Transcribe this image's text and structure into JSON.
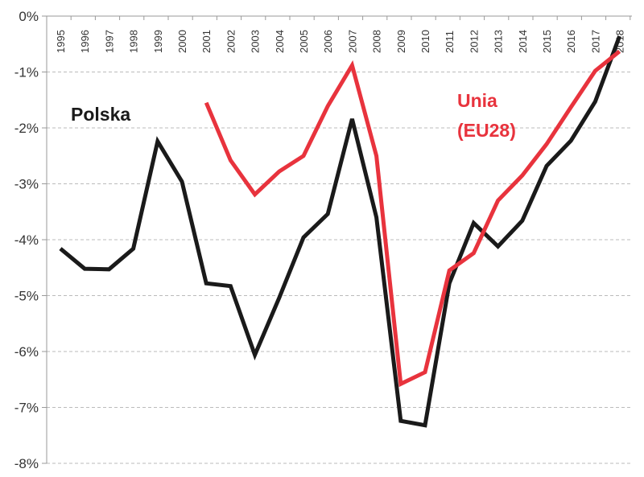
{
  "chart_data": {
    "type": "line",
    "title": "",
    "xlabel": "",
    "ylabel": "",
    "ylim": [
      -8,
      0
    ],
    "y_ticks": [
      "0%",
      "-1%",
      "-2%",
      "-3%",
      "-4%",
      "-5%",
      "-6%",
      "-7%",
      "-8%"
    ],
    "y_tick_values": [
      0,
      -1,
      -2,
      -3,
      -4,
      -5,
      -6,
      -7,
      -8
    ],
    "grid": "horizontal dashed",
    "categories": [
      "1995",
      "1996",
      "1997",
      "1998",
      "1999",
      "2000",
      "2001",
      "2002",
      "2003",
      "2004",
      "2005",
      "2006",
      "2007",
      "2008",
      "2009",
      "2010",
      "2011",
      "2012",
      "2013",
      "2014",
      "2015",
      "2016",
      "2017",
      "2018"
    ],
    "series": [
      {
        "name": "Polska",
        "color": "#1a1a1a",
        "values": [
          -4.16,
          -4.52,
          -4.53,
          -4.16,
          -2.24,
          -2.96,
          -4.78,
          -4.83,
          -6.06,
          -5.04,
          -3.96,
          -3.54,
          -1.84,
          -3.6,
          -7.24,
          -7.32,
          -4.78,
          -3.7,
          -4.12,
          -3.66,
          -2.68,
          -2.23,
          -1.53,
          -0.36
        ]
      },
      {
        "name": "Unia (EU28)",
        "label_lines": [
          "Unia",
          "(EU28)"
        ],
        "color": "#e8333d",
        "values": [
          null,
          null,
          null,
          null,
          null,
          null,
          -1.55,
          -2.58,
          -3.19,
          -2.78,
          -2.5,
          -1.61,
          -0.88,
          -2.5,
          -6.58,
          -6.37,
          -4.55,
          -4.24,
          -3.3,
          -2.85,
          -2.29,
          -1.63,
          -0.98,
          -0.63
        ]
      }
    ]
  }
}
